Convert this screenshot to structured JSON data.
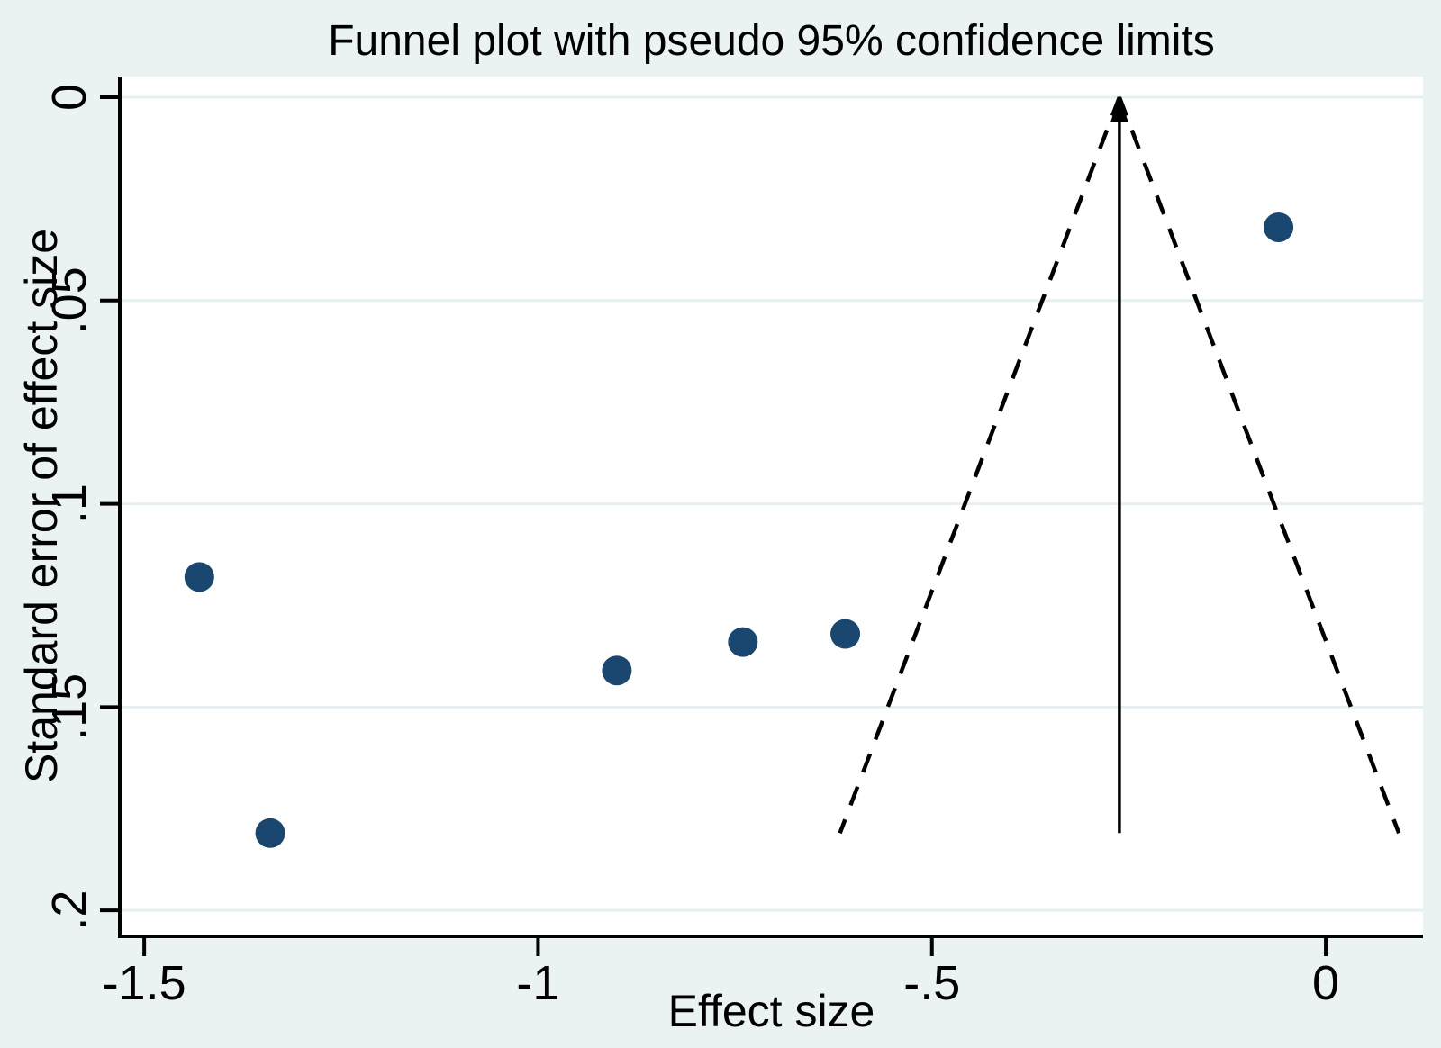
{
  "chart_data": {
    "type": "scatter",
    "title": "Funnel plot with pseudo 95% confidence limits",
    "xlabel": "Effect size",
    "ylabel": "Standard error of effect size",
    "xlim": [
      -1.531,
      0.1234
    ],
    "ylim": [
      -0.0051,
      0.2064
    ],
    "y_axis_reversed": true,
    "grid": true,
    "legend": "none",
    "x_ticks": [
      {
        "value": -1.5,
        "label": "-1.5"
      },
      {
        "value": -1.0,
        "label": "-1"
      },
      {
        "value": -0.5,
        "label": "-.5"
      },
      {
        "value": 0.0,
        "label": "0"
      }
    ],
    "y_ticks": [
      {
        "value": 0.0,
        "label": "0"
      },
      {
        "value": 0.05,
        "label": ".05"
      },
      {
        "value": 0.1,
        "label": ".1"
      },
      {
        "value": 0.15,
        "label": ".15"
      },
      {
        "value": 0.2,
        "label": ".2"
      }
    ],
    "points": [
      {
        "effect": -1.43,
        "se": 0.118
      },
      {
        "effect": -1.34,
        "se": 0.181
      },
      {
        "effect": -0.9,
        "se": 0.141
      },
      {
        "effect": -0.74,
        "se": 0.134
      },
      {
        "effect": -0.61,
        "se": 0.132
      },
      {
        "effect": -0.06,
        "se": 0.032
      }
    ],
    "pooled_effect": -0.262,
    "funnel": {
      "center": -0.262,
      "ci_multiplier": 1.96,
      "se_top": 0.0,
      "se_bottom": 0.181
    }
  },
  "colors": {
    "background": "#eaf2f3",
    "plot_background": "#ffffff",
    "gridline": "#e6eff1",
    "axis": "#000000",
    "marker": "#1a476f",
    "funnel_line": "#000000",
    "pooled_line": "#000000"
  }
}
